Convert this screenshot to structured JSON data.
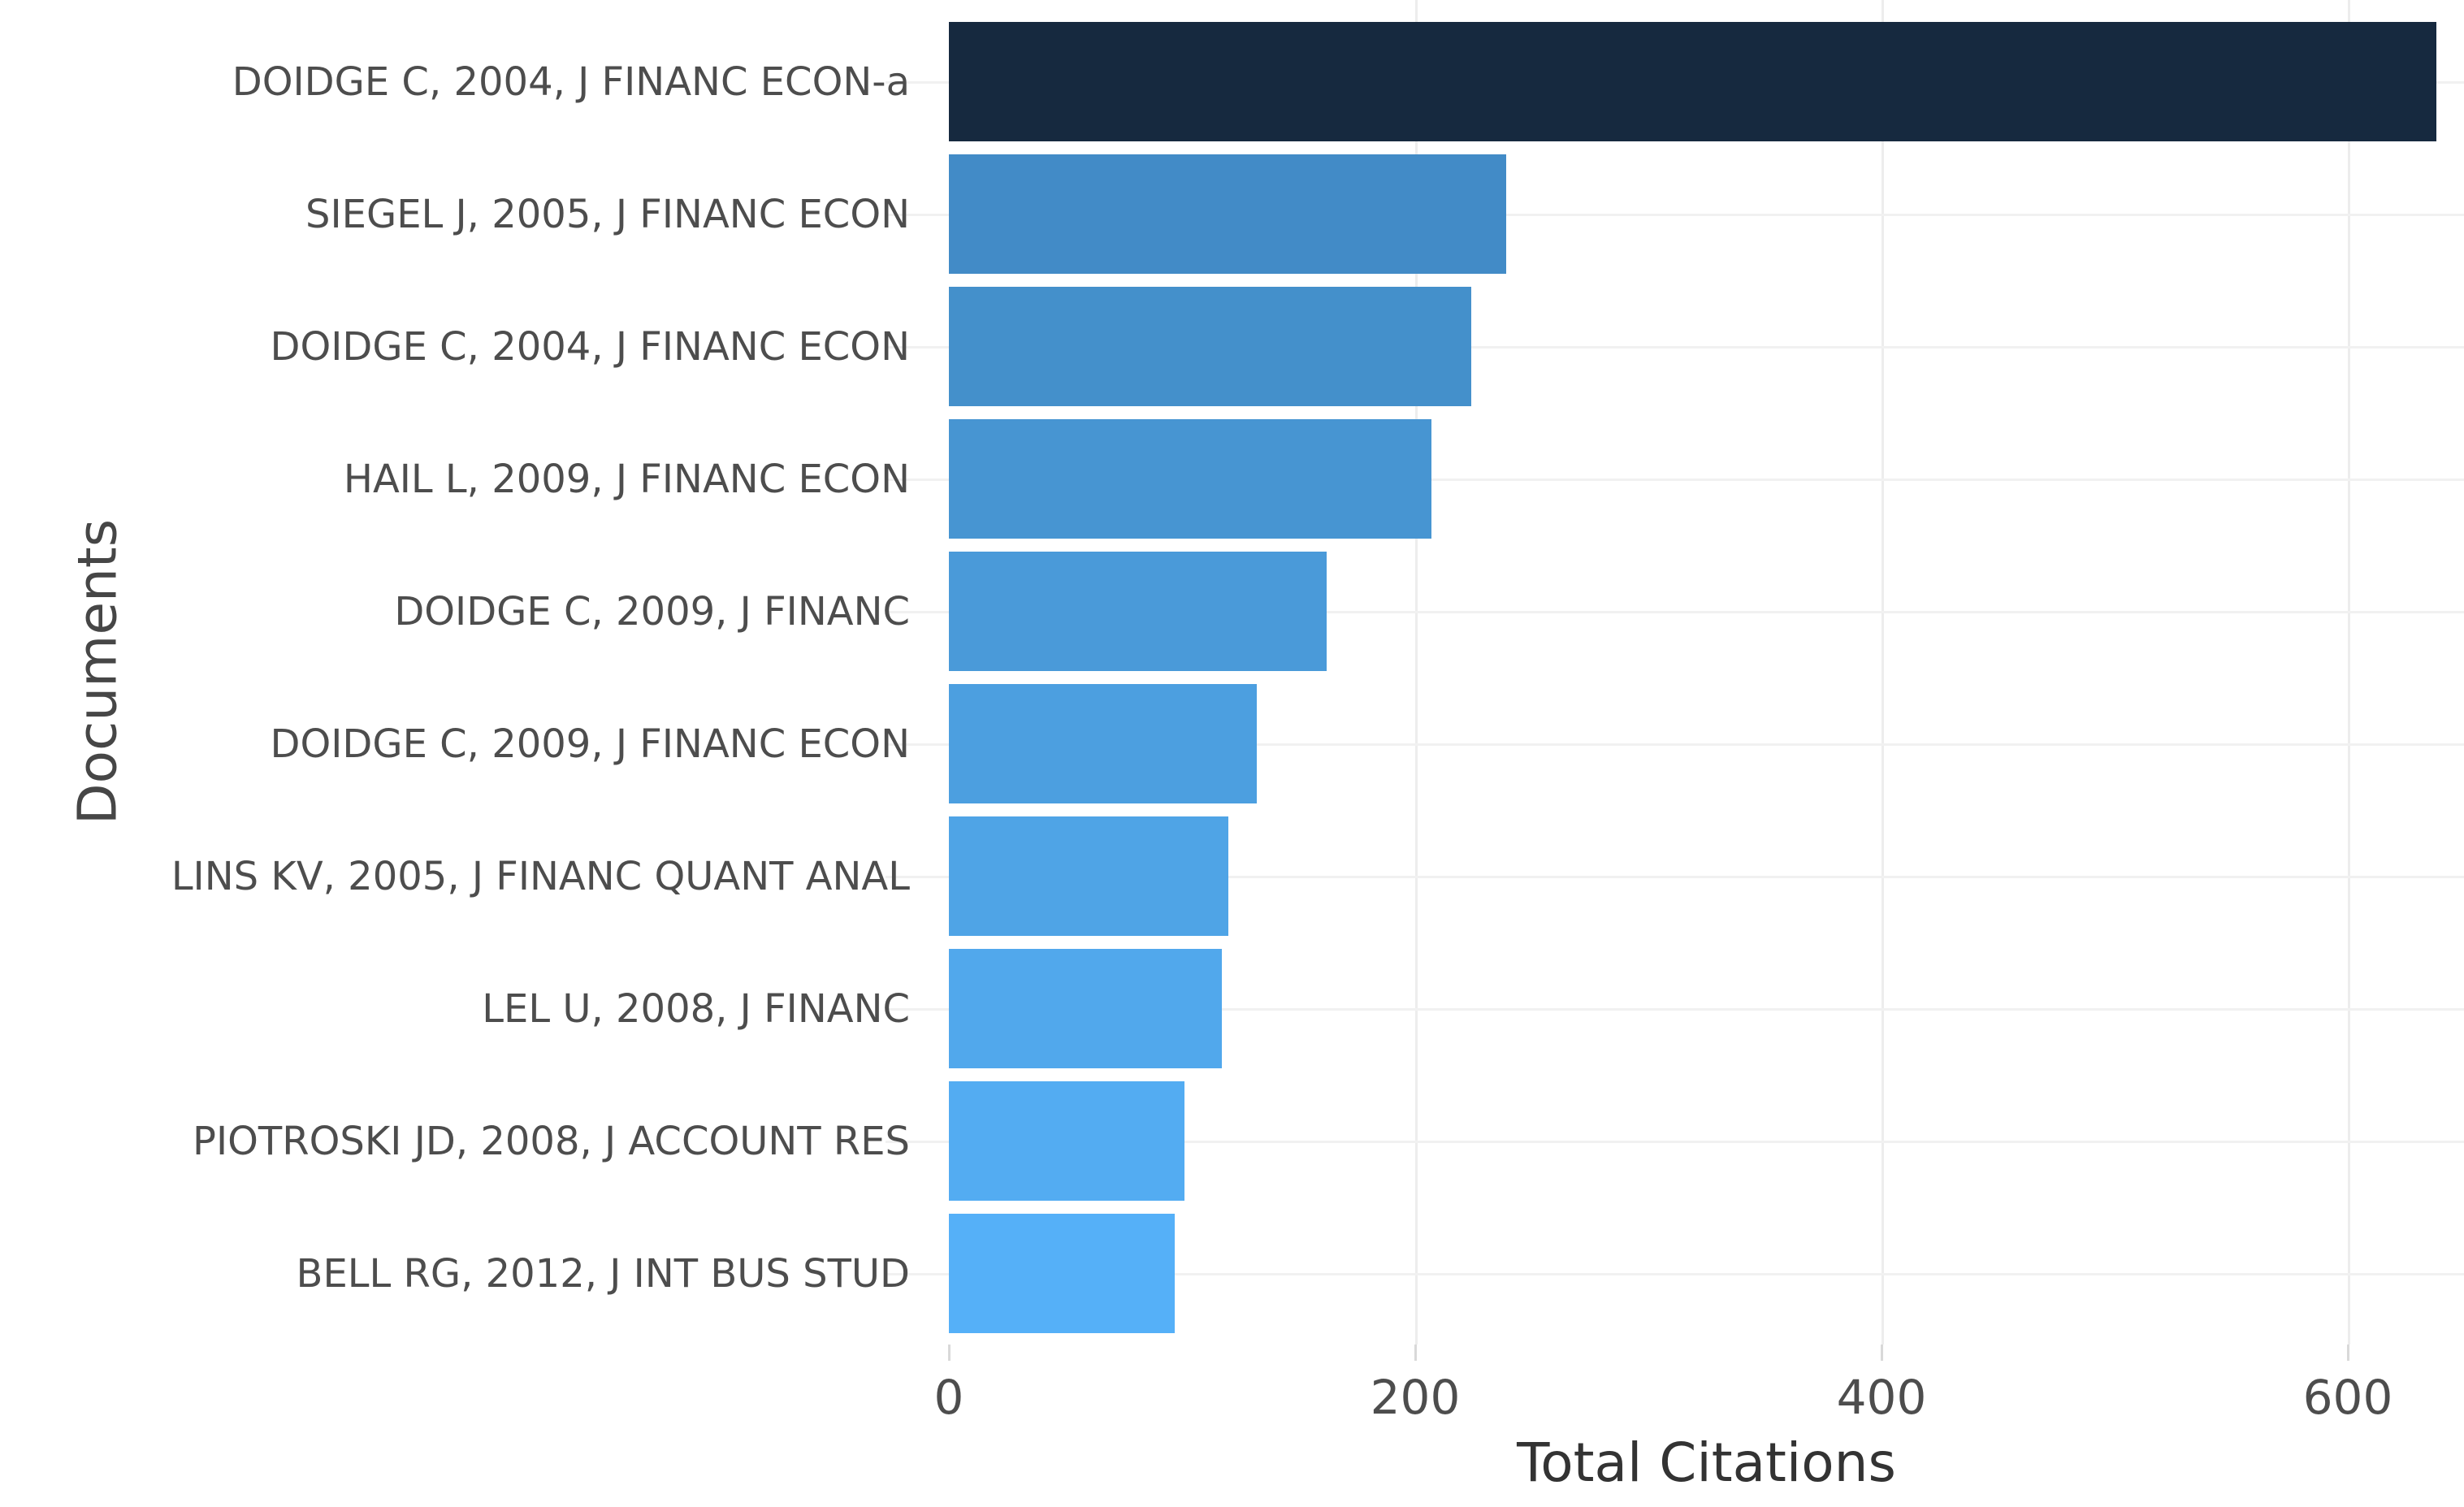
{
  "chart_data": {
    "type": "bar",
    "orientation": "horizontal",
    "title": "",
    "xlabel": "Total Citations",
    "ylabel": "Documents",
    "categories": [
      "DOIDGE C, 2004, J FINANC ECON-a",
      "SIEGEL J, 2005, J FINANC ECON",
      "DOIDGE C, 2004, J FINANC ECON",
      "HAIL L, 2009, J FINANC ECON",
      "DOIDGE C, 2009, J FINANC",
      "DOIDGE C, 2009, J FINANC ECON",
      "LINS KV, 2005, J FINANC QUANT ANAL",
      "LEL U, 2008, J FINANC",
      "PIOTROSKI JD, 2008, J ACCOUNT RES",
      "BELL RG, 2012, J INT BUS STUD"
    ],
    "values": [
      638,
      239,
      224,
      207,
      162,
      132,
      120,
      117,
      101,
      97
    ],
    "xlim": [
      0,
      650
    ],
    "xticks": [
      0,
      200,
      400,
      600
    ],
    "xtick_labels": [
      "0",
      "200",
      "400",
      "600"
    ],
    "grid": true,
    "legend": "none",
    "bar_colors": [
      "#16293f",
      "#428bc7",
      "#4490cb",
      "#4795d2",
      "#4a9ad9",
      "#4c9fe0",
      "#4fa4e6",
      "#51a8ec",
      "#53acf2",
      "#55b0f8"
    ],
    "colors": {
      "background": "#ffffff",
      "gridline": "#ededed",
      "row_guide_line": "#f1f1f1",
      "tick_label": "#4d4d4d",
      "axis_title": "#333333"
    }
  }
}
